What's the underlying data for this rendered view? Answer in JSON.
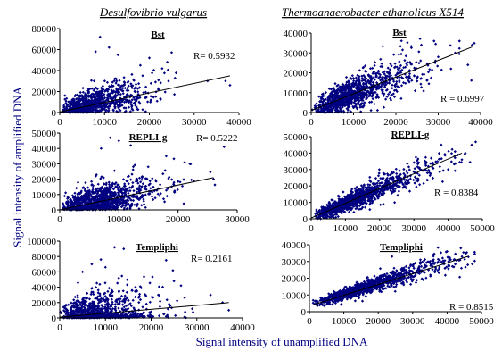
{
  "figure": {
    "column_titles": [
      "Desulfovibrio vulgarus",
      "Thermoanaerobacter ethanolicus X514"
    ],
    "xlabel": "Signal intensity of unamplified DNA",
    "ylabel": "Signal intensity of amplified DNA",
    "marker_color": "#000080",
    "line_color": "#000000"
  },
  "chart_data": [
    {
      "id": "dv-bst",
      "type": "scatter",
      "organism": "Desulfovibrio vulgarus",
      "title": "Bst",
      "r_label": "R= 0.5932",
      "xlim": [
        0,
        40000
      ],
      "ylim": [
        0,
        80000
      ],
      "xticks": [
        0,
        10000,
        20000,
        30000,
        40000
      ],
      "yticks": [
        0,
        20000,
        40000,
        60000,
        80000
      ],
      "trend": [
        [
          0,
          500
        ],
        [
          38000,
          35000
        ]
      ],
      "seed": 11,
      "n": 950,
      "xshape": 3.2,
      "xscale": 2800,
      "slope": 0.9,
      "intercept": 500,
      "noise": 9000,
      "skew": 1.6,
      "outliers": [
        [
          9000,
          72000
        ],
        [
          11000,
          62000
        ],
        [
          8000,
          58000
        ],
        [
          13000,
          55000
        ],
        [
          20000,
          52000
        ],
        [
          38000,
          26000
        ],
        [
          37000,
          30000
        ],
        [
          24000,
          48000
        ],
        [
          18000,
          45000
        ],
        [
          33000,
          30000
        ]
      ]
    },
    {
      "id": "te-bst",
      "type": "scatter",
      "organism": "Thermoanaerobacter ethanolicus X514",
      "title": "Bst",
      "r_label": "R = 0.6997",
      "xlim": [
        0,
        40000
      ],
      "ylim": [
        0,
        40000
      ],
      "xticks": [
        0,
        10000,
        20000,
        30000,
        40000
      ],
      "yticks": [
        0,
        10000,
        20000,
        30000,
        40000
      ],
      "trend": [
        [
          0,
          1000
        ],
        [
          38000,
          33000
        ]
      ],
      "seed": 23,
      "n": 1100,
      "xshape": 3.0,
      "xscale": 3500,
      "slope": 0.8,
      "intercept": 1000,
      "noise": 5500,
      "skew": 1.3,
      "outliers": [
        [
          35000,
          36000
        ],
        [
          30000,
          28000
        ],
        [
          34000,
          30000
        ],
        [
          37000,
          24000
        ],
        [
          26000,
          34000
        ],
        [
          29000,
          36000
        ],
        [
          38000,
          34000
        ],
        [
          33000,
          22000
        ]
      ]
    },
    {
      "id": "dv-repli",
      "type": "scatter",
      "organism": "Desulfovibrio vulgarus",
      "title": "REPLI-g",
      "r_label": "R= 0.5222",
      "xlim": [
        0,
        30000
      ],
      "ylim": [
        0,
        50000
      ],
      "xticks": [
        0,
        10000,
        20000,
        30000
      ],
      "yticks": [
        0,
        10000,
        20000,
        30000,
        40000,
        50000
      ],
      "trend": [
        [
          0,
          0
        ],
        [
          26000,
          21000
        ]
      ],
      "seed": 37,
      "n": 1100,
      "xshape": 3.0,
      "xscale": 2400,
      "slope": 0.8,
      "intercept": 0,
      "noise": 6500,
      "skew": 1.6,
      "outliers": [
        [
          8500,
          47000
        ],
        [
          10000,
          45000
        ],
        [
          12000,
          42000
        ],
        [
          7000,
          40000
        ],
        [
          22000,
          30000
        ],
        [
          26000,
          20000
        ],
        [
          18000,
          35000
        ]
      ]
    },
    {
      "id": "te-repli",
      "type": "scatter",
      "organism": "Thermoanaerobacter ethanolicus X514",
      "title": "REPLI-g",
      "r_label": "R = 0.8384",
      "xlim": [
        0,
        50000
      ],
      "ylim": [
        0,
        50000
      ],
      "xticks": [
        0,
        10000,
        20000,
        30000,
        40000,
        50000
      ],
      "yticks": [
        0,
        10000,
        20000,
        30000,
        40000,
        50000
      ],
      "trend": [
        [
          0,
          500
        ],
        [
          44000,
          40000
        ]
      ],
      "seed": 53,
      "n": 1200,
      "xshape": 3.0,
      "xscale": 4800,
      "slope": 0.88,
      "intercept": 500,
      "noise": 4200,
      "skew": 1.1,
      "outliers": [
        [
          42000,
          41000
        ],
        [
          38000,
          45000
        ],
        [
          44000,
          36000
        ],
        [
          40000,
          30000
        ],
        [
          45000,
          40000
        ]
      ]
    },
    {
      "id": "dv-templiphi",
      "type": "scatter",
      "organism": "Desulfovibrio vulgarus",
      "title": "Templiphi",
      "r_label": "R= 0.2161",
      "xlim": [
        0,
        40000
      ],
      "ylim": [
        0,
        100000
      ],
      "xticks": [
        0,
        10000,
        20000,
        30000,
        40000
      ],
      "yticks": [
        0,
        20000,
        40000,
        60000,
        80000,
        100000
      ],
      "trend": [
        [
          0,
          1000
        ],
        [
          37000,
          20000
        ]
      ],
      "seed": 71,
      "n": 1000,
      "xshape": 2.8,
      "xscale": 3000,
      "slope": 0.35,
      "intercept": 1000,
      "noise": 12000,
      "skew": 2.2,
      "outliers": [
        [
          12000,
          92000
        ],
        [
          14000,
          90000
        ],
        [
          9000,
          76000
        ],
        [
          7000,
          70000
        ],
        [
          10000,
          66000
        ],
        [
          5000,
          60000
        ],
        [
          33000,
          30000
        ],
        [
          37000,
          10000
        ],
        [
          29000,
          12000
        ],
        [
          25000,
          48000
        ]
      ]
    },
    {
      "id": "te-templiphi",
      "type": "scatter",
      "organism": "Thermoanaerobacter ethanolicus X514",
      "title": "Templiphi",
      "r_label": "R = 0.8515",
      "xlim": [
        0,
        50000
      ],
      "ylim": [
        0,
        40000
      ],
      "xticks": [
        0,
        10000,
        20000,
        30000,
        40000,
        50000
      ],
      "yticks": [
        0,
        10000,
        20000,
        30000,
        40000
      ],
      "trend": [
        [
          1000,
          4000
        ],
        [
          46000,
          33000
        ]
      ],
      "seed": 89,
      "n": 1100,
      "xshape": 2.6,
      "xscale": 6000,
      "slope": 0.65,
      "intercept": 4000,
      "noise": 3200,
      "skew": 0.9,
      "outliers": [
        [
          44000,
          38000
        ],
        [
          40000,
          36000
        ],
        [
          42000,
          31000
        ],
        [
          46000,
          28000
        ],
        [
          36000,
          34000
        ],
        [
          24000,
          33000
        ]
      ]
    }
  ]
}
